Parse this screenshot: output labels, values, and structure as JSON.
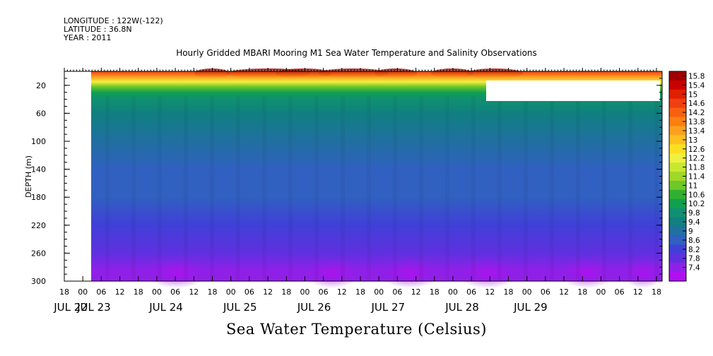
{
  "header": {
    "longitude": "LONGITUDE : 122W(-122)",
    "latitude": "LATITUDE : 36.8N",
    "year": "YEAR : 2011"
  },
  "chart_data": {
    "type": "heatmap",
    "title": "Hourly Gridded MBARI Mooring M1 Sea Water Temperature and Salinity Observations",
    "variable_label": "Sea Water Temperature (Celsius)",
    "ylabel": "DEPTH (m)",
    "ylim": [
      300,
      0
    ],
    "y_ticks": [
      20,
      60,
      100,
      140,
      180,
      220,
      260,
      300
    ],
    "x_start_hour_label": "18",
    "x_hour_ticks": [
      "18",
      "00",
      "06",
      "12",
      "18",
      "00",
      "06",
      "12",
      "18",
      "00",
      "06",
      "12",
      "18",
      "00",
      "06",
      "12",
      "18",
      "00",
      "06",
      "12",
      "18",
      "00",
      "06",
      "12",
      "18",
      "00",
      "06",
      "12",
      "18",
      "00",
      "06",
      "12",
      "18"
    ],
    "date_labels": [
      "JUL 22",
      "JUL 23",
      "JUL 24",
      "JUL 25",
      "JUL 26",
      "JUL 27",
      "JUL 28",
      "JUL 29"
    ],
    "colorbar": {
      "levels": [
        "15.8",
        "15.4",
        "15",
        "14.6",
        "14.2",
        "13.8",
        "13.4",
        "13",
        "12.6",
        "12.2",
        "11.8",
        "11.4",
        "11",
        "10.6",
        "10.2",
        "9.8",
        "9.4",
        "9",
        "8.6",
        "8.2",
        "7.8",
        "7.4"
      ],
      "colors": [
        "#a00000",
        "#c80000",
        "#e02000",
        "#f04010",
        "#f86010",
        "#fa8010",
        "#fca020",
        "#fcc020",
        "#fce020",
        "#f0f040",
        "#c8e830",
        "#a0d828",
        "#70c828",
        "#30b030",
        "#10a050",
        "#109070",
        "#108080",
        "#2070a0",
        "#3060c0",
        "#4040d8",
        "#6030e0",
        "#9020e8",
        "#b010f0"
      ]
    },
    "profile_depths_m": [
      0,
      8,
      15,
      22,
      30,
      40,
      60,
      100,
      140,
      180,
      220,
      260,
      285,
      300
    ],
    "profile_temps_c": [
      14.8,
      13.6,
      12.2,
      11.3,
      10.6,
      10.1,
      9.8,
      9.3,
      9.0,
      8.8,
      8.5,
      8.1,
      7.8,
      7.6
    ],
    "missing_data": {
      "before": "JUL 23 00",
      "upper_right_gap": "JUL 27 18 - JUL 29 24, 10-35 m"
    }
  }
}
